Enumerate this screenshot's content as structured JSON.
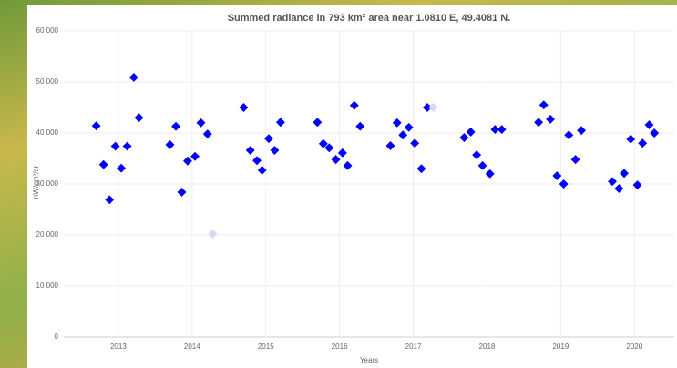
{
  "chart_data": {
    "type": "scatter",
    "title": "Summed radiance in 793 km² area near 1.0810 E, 49.4081 N.",
    "x_label": "Years",
    "y_label": "nW/cm²/sr",
    "xlim": [
      2012.26,
      2020.54
    ],
    "xticks": [
      2013,
      2014,
      2015,
      2016,
      2017,
      2018,
      2019,
      2020
    ],
    "ylim": [
      0,
      60000
    ],
    "yticks": [
      0,
      {
        "value": 10000,
        "label": "10 000"
      },
      {
        "value": 20000,
        "label": "20 000"
      },
      {
        "value": 30000,
        "label": "30 000"
      },
      {
        "value": 40000,
        "label": "40 000"
      },
      {
        "value": 50000,
        "label": "50 000"
      },
      {
        "value": 60000,
        "label": "60 000"
      }
    ],
    "grid": true,
    "series": [
      {
        "color": "#0000ff",
        "x": [
          2012.7,
          2012.8,
          2012.88,
          2012.96,
          2013.04,
          2013.12,
          2013.21,
          2013.28,
          2013.7,
          2013.78,
          2013.86,
          2013.94,
          2014.04,
          2014.12,
          2014.21,
          2014.7,
          2014.79,
          2014.88,
          2014.95,
          2015.04,
          2015.12,
          2015.2,
          2015.7,
          2015.78,
          2015.86,
          2015.95,
          2016.04,
          2016.11,
          2016.2,
          2016.28,
          2016.69,
          2016.78,
          2016.86,
          2016.94,
          2017.02,
          2017.11,
          2017.19,
          2017.69,
          2017.78,
          2017.86,
          2017.94,
          2018.04,
          2018.11,
          2018.2,
          2018.7,
          2018.77,
          2018.86,
          2018.95,
          2019.04,
          2019.11,
          2019.2,
          2019.28,
          2019.7,
          2019.79,
          2019.86,
          2019.95,
          2020.04,
          2020.11,
          2020.2,
          2020.27
        ],
        "values": [
          41400,
          33800,
          26900,
          37400,
          33100,
          37400,
          50900,
          43000,
          37700,
          41300,
          28400,
          34500,
          35400,
          42000,
          39800,
          45000,
          36600,
          34600,
          32700,
          38900,
          36600,
          42100,
          42100,
          37900,
          37100,
          34800,
          36100,
          33600,
          45400,
          41300,
          37500,
          42000,
          39600,
          41100,
          38000,
          33000,
          45000,
          39100,
          40200,
          35700,
          33600,
          32000,
          40700,
          40700,
          42100,
          45500,
          42700,
          31600,
          30000,
          39600,
          34800,
          40500,
          30500,
          29100,
          32100,
          38800,
          29800,
          38000,
          41600,
          40000
        ]
      },
      {
        "color": "#d6d6f5",
        "x": [
          2014.28,
          2017.27
        ],
        "values": [
          20200,
          45000
        ]
      }
    ]
  }
}
